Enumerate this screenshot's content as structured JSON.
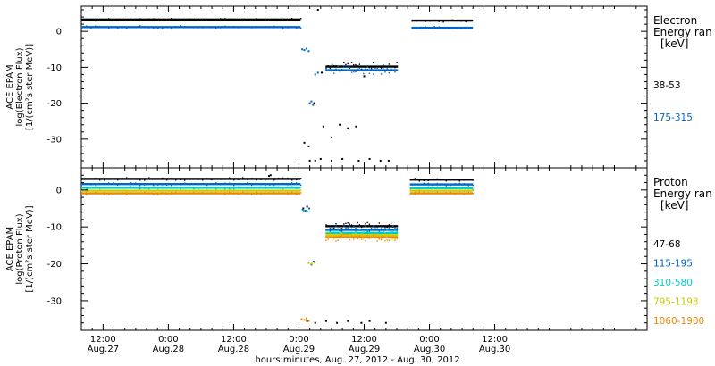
{
  "chart_data": {
    "type": "scatter",
    "x_axis": {
      "label": "hours:minutes, Aug. 27, 2012 - Aug. 30, 2012",
      "range_hours": [
        -16,
        88
      ],
      "ticks": [
        {
          "h": -12,
          "time": "12:00",
          "date": "Aug.27"
        },
        {
          "h": 0,
          "time": "0:00",
          "date": "Aug.28"
        },
        {
          "h": 12,
          "time": "12:00",
          "date": "Aug.28"
        },
        {
          "h": 24,
          "time": "0:00",
          "date": "Aug.29"
        },
        {
          "h": 36,
          "time": "12:00",
          "date": "Aug.29"
        },
        {
          "h": 48,
          "time": "0:00",
          "date": "Aug.30"
        },
        {
          "h": 60,
          "time": "12:00",
          "date": "Aug.30"
        }
      ],
      "minor_step_hours": 2
    },
    "panels": [
      {
        "id": "electron",
        "ylabel": [
          "ACE EPAM",
          "log(Electron Flux)",
          "[1/(cm²s ster MeV)]"
        ],
        "ylim": [
          -38,
          7
        ],
        "yticks": [
          0,
          -10,
          -20,
          -30
        ],
        "legend_title": [
          "Electron",
          "Energy ran",
          "[keV]"
        ],
        "series": [
          {
            "name": "38-53",
            "color": "#000000",
            "segments": [
              {
                "h0": -16,
                "h1": 24.3,
                "v": 3.3
              },
              {
                "h0": 28.9,
                "h1": 42.2,
                "v": -9.8
              },
              {
                "h0": 44.7,
                "h1": 56.0,
                "v": 3.0
              }
            ],
            "points": [
              [
                27.5,
                6.0
              ],
              [
                25.0,
                -31.0
              ],
              [
                25.8,
                -32.0
              ],
              [
                28.5,
                -26.5
              ],
              [
                30.0,
                -29.5
              ],
              [
                31.5,
                -26.0
              ],
              [
                33.0,
                -27.0
              ],
              [
                34.5,
                -26.5
              ],
              [
                26.0,
                -36.0
              ],
              [
                27.0,
                -36.0
              ],
              [
                28.0,
                -35.5
              ],
              [
                30.0,
                -36.0
              ],
              [
                32.0,
                -35.5
              ],
              [
                35.0,
                -36.0
              ],
              [
                37.0,
                -35.5
              ],
              [
                39.0,
                -36.0
              ],
              [
                40.5,
                -36.0
              ],
              [
                26.8,
                -20.0
              ],
              [
                28.2,
                -11.5
              ],
              [
                36.0,
                -12.5
              ]
            ]
          },
          {
            "name": "175-315",
            "color": "#0066cc",
            "segments": [
              {
                "h0": -16,
                "h1": 24.3,
                "v": 1.2
              },
              {
                "h0": 28.9,
                "h1": 42.2,
                "v": -10.8
              },
              {
                "h0": 44.7,
                "h1": 56.0,
                "v": 1.0
              }
            ],
            "points": [
              [
                24.6,
                -5.0
              ],
              [
                25.0,
                -5.2
              ],
              [
                25.4,
                -4.8
              ],
              [
                25.8,
                -5.5
              ],
              [
                26.0,
                -20.0
              ],
              [
                26.3,
                -19.5
              ],
              [
                26.6,
                -20.5
              ],
              [
                27.0,
                -12.0
              ],
              [
                27.5,
                -11.5
              ]
            ]
          }
        ]
      },
      {
        "id": "proton",
        "ylabel": [
          "ACE EPAM",
          "log(Proton Flux)",
          "[1/(cm²s ster MeV)]"
        ],
        "ylim": [
          -38,
          6
        ],
        "yticks": [
          0,
          -10,
          -20,
          -30
        ],
        "legend_title": [
          "Proton",
          "Energy ran",
          "[keV]"
        ],
        "series": [
          {
            "name": "47-68",
            "color": "#000000",
            "segments": [
              {
                "h0": -16,
                "h1": 24.3,
                "v": 3.0
              },
              {
                "h0": 28.9,
                "h1": 42.2,
                "v": -9.8
              },
              {
                "h0": 44.4,
                "h1": 56.0,
                "v": 2.8
              }
            ],
            "points": [
              [
                25.5,
                -35.5
              ],
              [
                27.0,
                -36.0
              ],
              [
                29.0,
                -35.5
              ],
              [
                31.0,
                -36.0
              ],
              [
                33.0,
                -35.5
              ],
              [
                35.5,
                -36.0
              ],
              [
                37.0,
                -35.5
              ],
              [
                40.0,
                -36.0
              ],
              [
                24.8,
                -5.0
              ],
              [
                25.5,
                -4.5
              ],
              [
                18.5,
                3.8
              ],
              [
                18.8,
                4.0
              ],
              [
                19.5,
                3.0
              ]
            ]
          },
          {
            "name": "115-195",
            "color": "#0066cc",
            "segments": [
              {
                "h0": -16,
                "h1": 24.3,
                "v": 1.6
              },
              {
                "h0": 28.9,
                "h1": 42.2,
                "v": -10.8
              },
              {
                "h0": 44.4,
                "h1": 56.0,
                "v": 1.5
              }
            ],
            "points": [
              [
                24.7,
                -5.3
              ],
              [
                25.2,
                -5.6
              ],
              [
                25.9,
                -5.0
              ],
              [
                26.3,
                -20.2
              ],
              [
                26.7,
                -19.4
              ]
            ]
          },
          {
            "name": "310-580",
            "color": "#00cccc",
            "segments": [
              {
                "h0": -16,
                "h1": 24.3,
                "v": 0.6
              },
              {
                "h0": 28.9,
                "h1": 42.2,
                "v": -11.6
              },
              {
                "h0": 44.4,
                "h1": 56.0,
                "v": 0.5
              }
            ],
            "points": [
              [
                24.9,
                -5.6
              ],
              [
                25.6,
                -5.9
              ]
            ]
          },
          {
            "name": "795-1193",
            "color": "#cccc00",
            "segments": [
              {
                "h0": -16,
                "h1": 24.3,
                "v": -0.2
              },
              {
                "h0": 28.9,
                "h1": 42.2,
                "v": -12.2
              },
              {
                "h0": 44.4,
                "h1": 56.0,
                "v": -0.2
              }
            ],
            "points": [
              [
                25.8,
                -19.8
              ],
              [
                26.4,
                -20.0
              ],
              [
                26.9,
                -19.7
              ]
            ]
          },
          {
            "name": "1060-1900",
            "color": "#ee8800",
            "segments": [
              {
                "h0": -16,
                "h1": 24.3,
                "v": -0.9
              },
              {
                "h0": 28.9,
                "h1": 42.2,
                "v": -12.8
              },
              {
                "h0": 44.4,
                "h1": 56.0,
                "v": -0.9
              }
            ],
            "points": [
              [
                24.5,
                -35.0
              ],
              [
                25.0,
                -35.2
              ],
              [
                25.4,
                -34.8
              ],
              [
                25.8,
                -35.5
              ]
            ]
          }
        ]
      }
    ]
  }
}
